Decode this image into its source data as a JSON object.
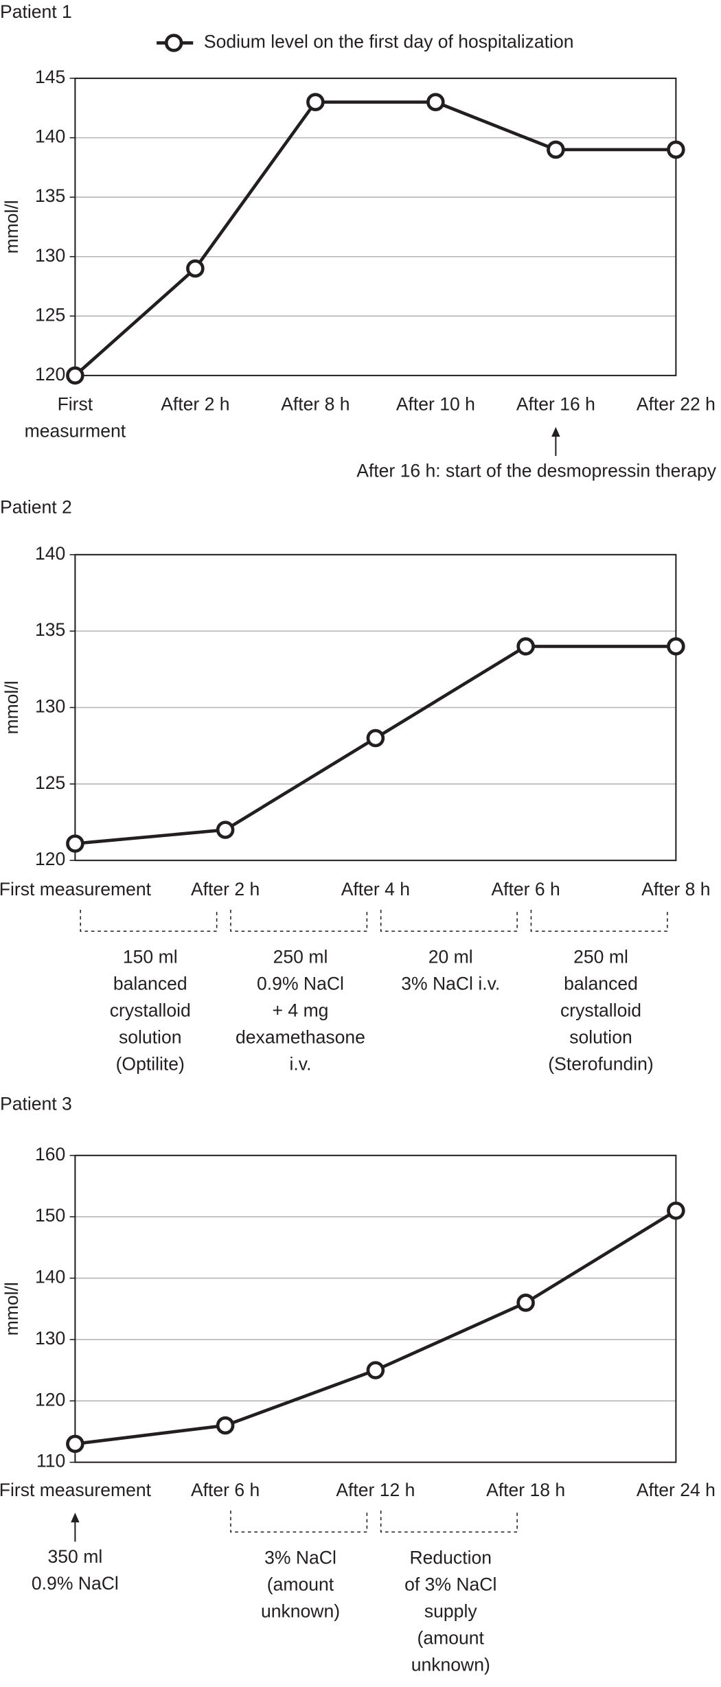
{
  "chart_data": [
    {
      "type": "line",
      "title": "Patient 1",
      "y_label": "mmol/l",
      "categories": [
        "First\nmeasurment",
        "After 2 h",
        "After 8 h",
        "After 10 h",
        "After 16 h",
        "After 22 h"
      ],
      "series": [
        {
          "name": "Sodium level on the first day of hospitalization",
          "color": "#231f20",
          "values": [
            120,
            129,
            143,
            143,
            139,
            139
          ]
        }
      ],
      "ylim": [
        120,
        145
      ],
      "yticks": [
        120,
        125,
        130,
        135,
        140,
        145
      ],
      "grid": true,
      "point_notes": [
        null,
        null,
        null,
        null,
        "After 16 h: start of the desmopressin therapy",
        null
      ]
    },
    {
      "type": "line",
      "title": "Patient 2",
      "y_label": "mmol/l",
      "categories": [
        "First measurement",
        "After 2 h",
        "After 4 h",
        "After 6 h",
        "After 8 h"
      ],
      "series": [
        {
          "color": "#231f20",
          "values": [
            121.1,
            122,
            128,
            134,
            134
          ]
        }
      ],
      "ylim": [
        120,
        140
      ],
      "yticks": [
        120,
        125,
        130,
        135,
        140
      ],
      "grid": true,
      "interval_notes": [
        "150 ml\nbalanced\ncrystalloid\nsolution\n(Optilite)",
        "250 ml\n0.9% NaCl\n+ 4 mg\ndexamethasone\ni.v.",
        "20 ml\n3% NaCl i.v.",
        "250 ml\nbalanced\ncrystalloid\nsolution\n(Sterofundin)"
      ]
    },
    {
      "type": "line",
      "title": "Patient 3",
      "y_label": "mmol/l",
      "categories": [
        "First measurement",
        "After 6 h",
        "After 12 h",
        "After 18 h",
        "After 24 h"
      ],
      "series": [
        {
          "color": "#231f20",
          "values": [
            113,
            116,
            125,
            136,
            151
          ]
        }
      ],
      "ylim": [
        110,
        160
      ],
      "yticks": [
        110,
        120,
        130,
        140,
        150,
        160
      ],
      "grid": true,
      "point_notes": [
        "350 ml\n0.9% NaCl",
        null,
        null,
        null,
        null
      ],
      "interval_notes": [
        null,
        "3% NaCl\n(amount\nunknown)",
        "Reduction\nof 3% NaCl\nsupply\n(amount\nunknown)",
        null
      ]
    }
  ]
}
